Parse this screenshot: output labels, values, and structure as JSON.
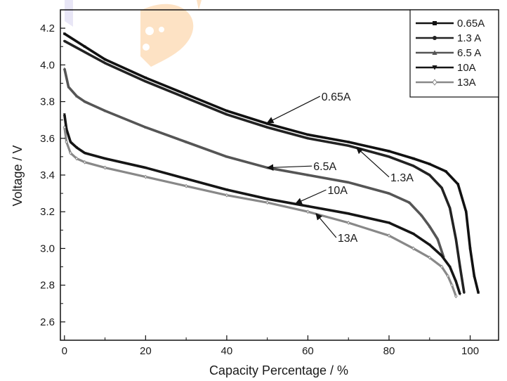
{
  "chart_data": {
    "type": "line",
    "title": "",
    "xlabel": "Capacity Percentage  /  %",
    "ylabel": "Voltage  /  V",
    "xlim": [
      -1,
      107
    ],
    "ylim": [
      2.5,
      4.3
    ],
    "xticks": [
      0,
      20,
      40,
      60,
      80,
      100
    ],
    "yticks": [
      2.6,
      2.8,
      3.0,
      3.2,
      3.4,
      3.6,
      3.8,
      4.0,
      4.2
    ],
    "xtick_labels": [
      "0",
      "20",
      "40",
      "60",
      "80",
      "100"
    ],
    "ytick_labels": [
      "2.6",
      "2.8",
      "3.0",
      "3.2",
      "3.4",
      "3.6",
      "3.8",
      "4.0",
      "4.2"
    ],
    "grid": false,
    "legend_position": "top-right",
    "series": [
      {
        "name": "0.65A",
        "color": "#111111",
        "marker": "square",
        "x": [
          0,
          5,
          10,
          20,
          30,
          40,
          50,
          60,
          70,
          80,
          86,
          90,
          94,
          97,
          99,
          100,
          101,
          102
        ],
        "y": [
          4.17,
          4.1,
          4.03,
          3.93,
          3.84,
          3.75,
          3.68,
          3.62,
          3.58,
          3.53,
          3.49,
          3.46,
          3.42,
          3.35,
          3.2,
          3.0,
          2.85,
          2.76
        ]
      },
      {
        "name": "1.3 A",
        "color": "#222222",
        "marker": "circle",
        "x": [
          0,
          5,
          10,
          20,
          30,
          40,
          50,
          60,
          70,
          80,
          86,
          90,
          93,
          95,
          96.5,
          97.5,
          98.5
        ],
        "y": [
          4.13,
          4.07,
          4.01,
          3.91,
          3.82,
          3.73,
          3.66,
          3.6,
          3.56,
          3.5,
          3.45,
          3.4,
          3.33,
          3.22,
          3.05,
          2.9,
          2.76
        ]
      },
      {
        "name": "6.5 A",
        "color": "#555555",
        "marker": "triangle-up",
        "x": [
          0,
          1,
          3,
          5,
          10,
          20,
          30,
          40,
          50,
          60,
          70,
          80,
          85,
          88,
          90,
          92,
          93.5
        ],
        "y": [
          3.98,
          3.88,
          3.83,
          3.8,
          3.75,
          3.66,
          3.58,
          3.5,
          3.44,
          3.4,
          3.36,
          3.3,
          3.25,
          3.18,
          3.12,
          3.05,
          2.95
        ]
      },
      {
        "name": "10A",
        "color": "#151515",
        "marker": "triangle-down",
        "x": [
          0,
          0.5,
          1.5,
          3,
          5,
          10,
          20,
          30,
          40,
          50,
          60,
          70,
          80,
          86,
          90,
          93,
          95,
          96.5,
          97.5
        ],
        "y": [
          3.73,
          3.65,
          3.58,
          3.55,
          3.52,
          3.49,
          3.44,
          3.38,
          3.32,
          3.27,
          3.23,
          3.19,
          3.14,
          3.08,
          3.02,
          2.96,
          2.9,
          2.82,
          2.75
        ]
      },
      {
        "name": "13A",
        "color": "#888888",
        "marker": "diamond-open",
        "x": [
          0,
          0.5,
          1.5,
          3,
          5,
          10,
          20,
          30,
          40,
          50,
          60,
          70,
          80,
          86,
          90,
          93,
          94.5,
          95.5,
          96.5
        ],
        "y": [
          3.66,
          3.58,
          3.52,
          3.49,
          3.47,
          3.44,
          3.39,
          3.34,
          3.29,
          3.25,
          3.2,
          3.14,
          3.07,
          3.0,
          2.95,
          2.9,
          2.85,
          2.8,
          2.74
        ]
      }
    ],
    "annotations": [
      {
        "text": "0.65A",
        "series": "0.65A",
        "x": 50,
        "y": 3.685,
        "label_x": 63,
        "label_y": 3.81
      },
      {
        "text": "6.5A",
        "series": "6.5 A",
        "x": 50,
        "y": 3.44,
        "label_x": 61,
        "label_y": 3.43
      },
      {
        "text": "1.3A",
        "series": "1.3 A",
        "x": 72,
        "y": 3.55,
        "label_x": 80,
        "label_y": 3.37
      },
      {
        "text": "10A",
        "series": "10A",
        "x": 57,
        "y": 3.245,
        "label_x": 64.5,
        "label_y": 3.3
      },
      {
        "text": "13A",
        "series": "13A",
        "x": 62,
        "y": 3.19,
        "label_x": 67,
        "label_y": 3.04
      }
    ]
  }
}
